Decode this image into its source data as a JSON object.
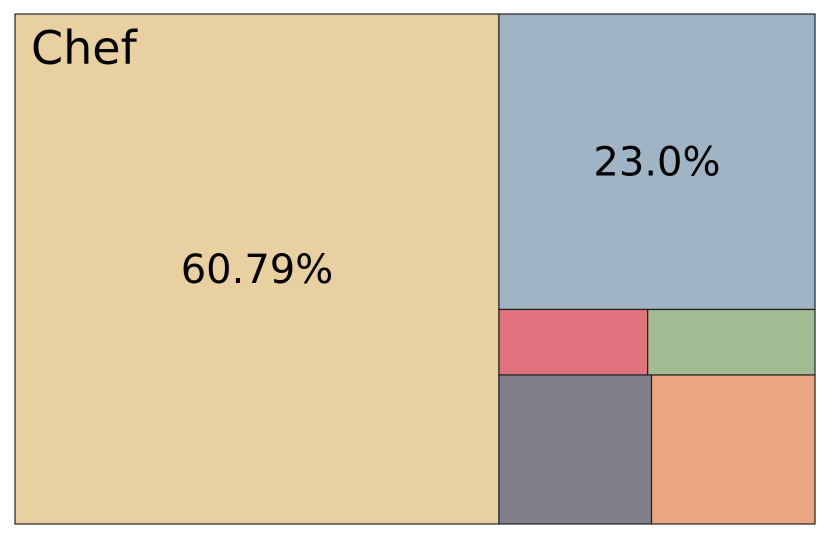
{
  "chart_data": {
    "type": "treemap",
    "title": "Chef",
    "border_color": "#222222",
    "tiles": [
      {
        "label": "60.79%",
        "value": 60.79,
        "color": "#e9d0a1"
      },
      {
        "label": "23.0%",
        "value": 23.0,
        "color": "#9fb4c4"
      },
      {
        "label": "",
        "value": 2.4,
        "color": "#e0737d"
      },
      {
        "label": "",
        "value": 2.7,
        "color": "#a1bb92"
      },
      {
        "label": "",
        "value": 5.6,
        "color": "#817f8b"
      },
      {
        "label": "",
        "value": 6.0,
        "color": "#eaa67e"
      }
    ]
  }
}
